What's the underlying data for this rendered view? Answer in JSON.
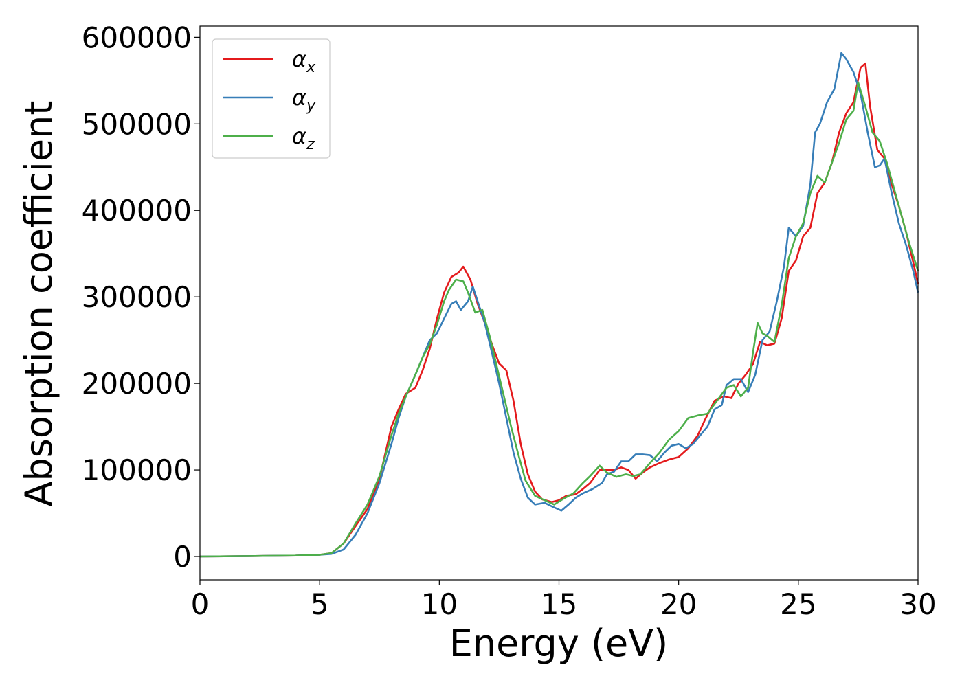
{
  "chart_data": {
    "type": "line",
    "title": "",
    "xlabel": "Energy (eV)",
    "ylabel": "Absorption coefficient",
    "xlim": [
      0,
      30
    ],
    "ylim": [
      -27000,
      613000
    ],
    "xticks": [
      0,
      5,
      10,
      15,
      20,
      25,
      30
    ],
    "xtick_labels": [
      "0",
      "5",
      "10",
      "15",
      "20",
      "25",
      "30"
    ],
    "yticks": [
      0,
      100000,
      200000,
      300000,
      400000,
      500000,
      600000
    ],
    "ytick_labels": [
      "0",
      "100000",
      "200000",
      "300000",
      "400000",
      "500000",
      "600000"
    ],
    "grid": false,
    "legend_position": "top-left",
    "series": [
      {
        "name": "α_x",
        "label_main": "α",
        "label_sub": "x",
        "color": "#e41a1c",
        "points": [
          [
            0,
            0
          ],
          [
            2,
            500
          ],
          [
            4,
            1000
          ],
          [
            5,
            2000
          ],
          [
            5.5,
            4000
          ],
          [
            6,
            15000
          ],
          [
            6.5,
            35000
          ],
          [
            7,
            55000
          ],
          [
            7.5,
            90000
          ],
          [
            8,
            150000
          ],
          [
            8.3,
            170000
          ],
          [
            8.6,
            188000
          ],
          [
            9,
            195000
          ],
          [
            9.3,
            215000
          ],
          [
            9.6,
            240000
          ],
          [
            9.9,
            275000
          ],
          [
            10.2,
            305000
          ],
          [
            10.5,
            323000
          ],
          [
            10.8,
            328000
          ],
          [
            11,
            335000
          ],
          [
            11.3,
            320000
          ],
          [
            11.6,
            292000
          ],
          [
            11.9,
            270000
          ],
          [
            12.2,
            245000
          ],
          [
            12.5,
            223000
          ],
          [
            12.8,
            215000
          ],
          [
            13.1,
            180000
          ],
          [
            13.4,
            130000
          ],
          [
            13.7,
            95000
          ],
          [
            14,
            75000
          ],
          [
            14.3,
            66000
          ],
          [
            14.7,
            63000
          ],
          [
            15,
            65000
          ],
          [
            15.3,
            70000
          ],
          [
            15.7,
            72000
          ],
          [
            16,
            78000
          ],
          [
            16.3,
            85000
          ],
          [
            16.7,
            100000
          ],
          [
            17,
            100000
          ],
          [
            17.3,
            100000
          ],
          [
            17.6,
            103000
          ],
          [
            17.9,
            100000
          ],
          [
            18.2,
            90000
          ],
          [
            18.5,
            97000
          ],
          [
            18.8,
            103000
          ],
          [
            19.2,
            108000
          ],
          [
            19.6,
            112000
          ],
          [
            20,
            115000
          ],
          [
            20.4,
            125000
          ],
          [
            20.8,
            140000
          ],
          [
            21.1,
            158000
          ],
          [
            21.5,
            180000
          ],
          [
            21.9,
            185000
          ],
          [
            22.2,
            183000
          ],
          [
            22.5,
            200000
          ],
          [
            22.8,
            210000
          ],
          [
            23.1,
            222000
          ],
          [
            23.4,
            248000
          ],
          [
            23.7,
            244000
          ],
          [
            24,
            246000
          ],
          [
            24.3,
            275000
          ],
          [
            24.6,
            330000
          ],
          [
            24.9,
            342000
          ],
          [
            25.2,
            370000
          ],
          [
            25.5,
            380000
          ],
          [
            25.8,
            420000
          ],
          [
            26.1,
            432000
          ],
          [
            26.4,
            455000
          ],
          [
            26.7,
            490000
          ],
          [
            27,
            512000
          ],
          [
            27.3,
            525000
          ],
          [
            27.6,
            565000
          ],
          [
            27.8,
            570000
          ],
          [
            28,
            520000
          ],
          [
            28.3,
            470000
          ],
          [
            28.6,
            460000
          ],
          [
            28.9,
            430000
          ],
          [
            29.2,
            405000
          ],
          [
            29.5,
            375000
          ],
          [
            29.8,
            340000
          ],
          [
            30,
            315000
          ]
        ]
      },
      {
        "name": "α_y",
        "label_main": "α",
        "label_sub": "y",
        "color": "#377eb8",
        "points": [
          [
            0,
            0
          ],
          [
            2,
            500
          ],
          [
            4,
            1000
          ],
          [
            5,
            2000
          ],
          [
            5.5,
            3000
          ],
          [
            6,
            8000
          ],
          [
            6.5,
            25000
          ],
          [
            7,
            50000
          ],
          [
            7.5,
            85000
          ],
          [
            8,
            130000
          ],
          [
            8.3,
            160000
          ],
          [
            8.6,
            185000
          ],
          [
            9,
            210000
          ],
          [
            9.3,
            230000
          ],
          [
            9.6,
            250000
          ],
          [
            9.9,
            258000
          ],
          [
            10.2,
            275000
          ],
          [
            10.5,
            292000
          ],
          [
            10.7,
            295000
          ],
          [
            10.9,
            285000
          ],
          [
            11.2,
            295000
          ],
          [
            11.4,
            312000
          ],
          [
            11.6,
            295000
          ],
          [
            11.9,
            270000
          ],
          [
            12.2,
            235000
          ],
          [
            12.5,
            200000
          ],
          [
            12.8,
            160000
          ],
          [
            13.1,
            120000
          ],
          [
            13.4,
            90000
          ],
          [
            13.7,
            68000
          ],
          [
            14,
            60000
          ],
          [
            14.4,
            62000
          ],
          [
            14.7,
            58000
          ],
          [
            15.1,
            53000
          ],
          [
            15.4,
            60000
          ],
          [
            15.7,
            68000
          ],
          [
            16,
            73000
          ],
          [
            16.4,
            78000
          ],
          [
            16.8,
            85000
          ],
          [
            17,
            95000
          ],
          [
            17.3,
            98000
          ],
          [
            17.6,
            110000
          ],
          [
            17.9,
            110000
          ],
          [
            18.2,
            118000
          ],
          [
            18.5,
            118000
          ],
          [
            18.8,
            117000
          ],
          [
            19.1,
            110000
          ],
          [
            19.4,
            120000
          ],
          [
            19.7,
            128000
          ],
          [
            20,
            130000
          ],
          [
            20.3,
            125000
          ],
          [
            20.6,
            130000
          ],
          [
            20.9,
            140000
          ],
          [
            21.2,
            150000
          ],
          [
            21.5,
            170000
          ],
          [
            21.8,
            175000
          ],
          [
            22,
            198000
          ],
          [
            22.3,
            205000
          ],
          [
            22.6,
            205000
          ],
          [
            22.9,
            190000
          ],
          [
            23.2,
            210000
          ],
          [
            23.5,
            250000
          ],
          [
            23.8,
            260000
          ],
          [
            24.1,
            295000
          ],
          [
            24.4,
            335000
          ],
          [
            24.6,
            380000
          ],
          [
            24.9,
            370000
          ],
          [
            25.2,
            382000
          ],
          [
            25.5,
            430000
          ],
          [
            25.7,
            490000
          ],
          [
            25.9,
            500000
          ],
          [
            26.2,
            525000
          ],
          [
            26.5,
            540000
          ],
          [
            26.8,
            582000
          ],
          [
            27,
            575000
          ],
          [
            27.3,
            560000
          ],
          [
            27.6,
            535000
          ],
          [
            27.9,
            490000
          ],
          [
            28.2,
            450000
          ],
          [
            28.4,
            452000
          ],
          [
            28.6,
            460000
          ],
          [
            28.9,
            420000
          ],
          [
            29.2,
            385000
          ],
          [
            29.5,
            360000
          ],
          [
            29.8,
            330000
          ],
          [
            30,
            305000
          ]
        ]
      },
      {
        "name": "α_z",
        "label_main": "α",
        "label_sub": "z",
        "color": "#4daf4a",
        "points": [
          [
            0,
            0
          ],
          [
            2,
            500
          ],
          [
            4,
            1000
          ],
          [
            5,
            2000
          ],
          [
            5.5,
            4000
          ],
          [
            6,
            15000
          ],
          [
            6.5,
            38000
          ],
          [
            7,
            60000
          ],
          [
            7.5,
            93000
          ],
          [
            8,
            140000
          ],
          [
            8.3,
            165000
          ],
          [
            8.6,
            185000
          ],
          [
            9,
            210000
          ],
          [
            9.3,
            230000
          ],
          [
            9.6,
            245000
          ],
          [
            9.9,
            268000
          ],
          [
            10.2,
            295000
          ],
          [
            10.4,
            308000
          ],
          [
            10.7,
            320000
          ],
          [
            11,
            318000
          ],
          [
            11.2,
            305000
          ],
          [
            11.5,
            282000
          ],
          [
            11.8,
            285000
          ],
          [
            12.1,
            255000
          ],
          [
            12.4,
            220000
          ],
          [
            12.7,
            185000
          ],
          [
            13,
            150000
          ],
          [
            13.3,
            118000
          ],
          [
            13.6,
            88000
          ],
          [
            14,
            70000
          ],
          [
            14.4,
            65000
          ],
          [
            14.8,
            60000
          ],
          [
            15.2,
            67000
          ],
          [
            15.6,
            73000
          ],
          [
            16,
            85000
          ],
          [
            16.3,
            93000
          ],
          [
            16.7,
            105000
          ],
          [
            17,
            97000
          ],
          [
            17.4,
            92000
          ],
          [
            17.8,
            95000
          ],
          [
            18.1,
            93000
          ],
          [
            18.4,
            95000
          ],
          [
            18.8,
            108000
          ],
          [
            19.2,
            120000
          ],
          [
            19.6,
            135000
          ],
          [
            20,
            145000
          ],
          [
            20.4,
            160000
          ],
          [
            20.8,
            163000
          ],
          [
            21.2,
            165000
          ],
          [
            21.6,
            180000
          ],
          [
            22,
            195000
          ],
          [
            22.3,
            198000
          ],
          [
            22.6,
            185000
          ],
          [
            22.9,
            195000
          ],
          [
            23.1,
            235000
          ],
          [
            23.3,
            270000
          ],
          [
            23.5,
            258000
          ],
          [
            23.7,
            255000
          ],
          [
            24,
            248000
          ],
          [
            24.3,
            290000
          ],
          [
            24.6,
            345000
          ],
          [
            24.9,
            370000
          ],
          [
            25.2,
            385000
          ],
          [
            25.5,
            420000
          ],
          [
            25.8,
            440000
          ],
          [
            26.1,
            432000
          ],
          [
            26.4,
            455000
          ],
          [
            26.7,
            478000
          ],
          [
            27,
            505000
          ],
          [
            27.3,
            515000
          ],
          [
            27.5,
            548000
          ],
          [
            27.8,
            520000
          ],
          [
            28.1,
            490000
          ],
          [
            28.4,
            480000
          ],
          [
            28.7,
            455000
          ],
          [
            29,
            425000
          ],
          [
            29.3,
            395000
          ],
          [
            29.6,
            365000
          ],
          [
            30,
            330000
          ]
        ]
      }
    ]
  }
}
